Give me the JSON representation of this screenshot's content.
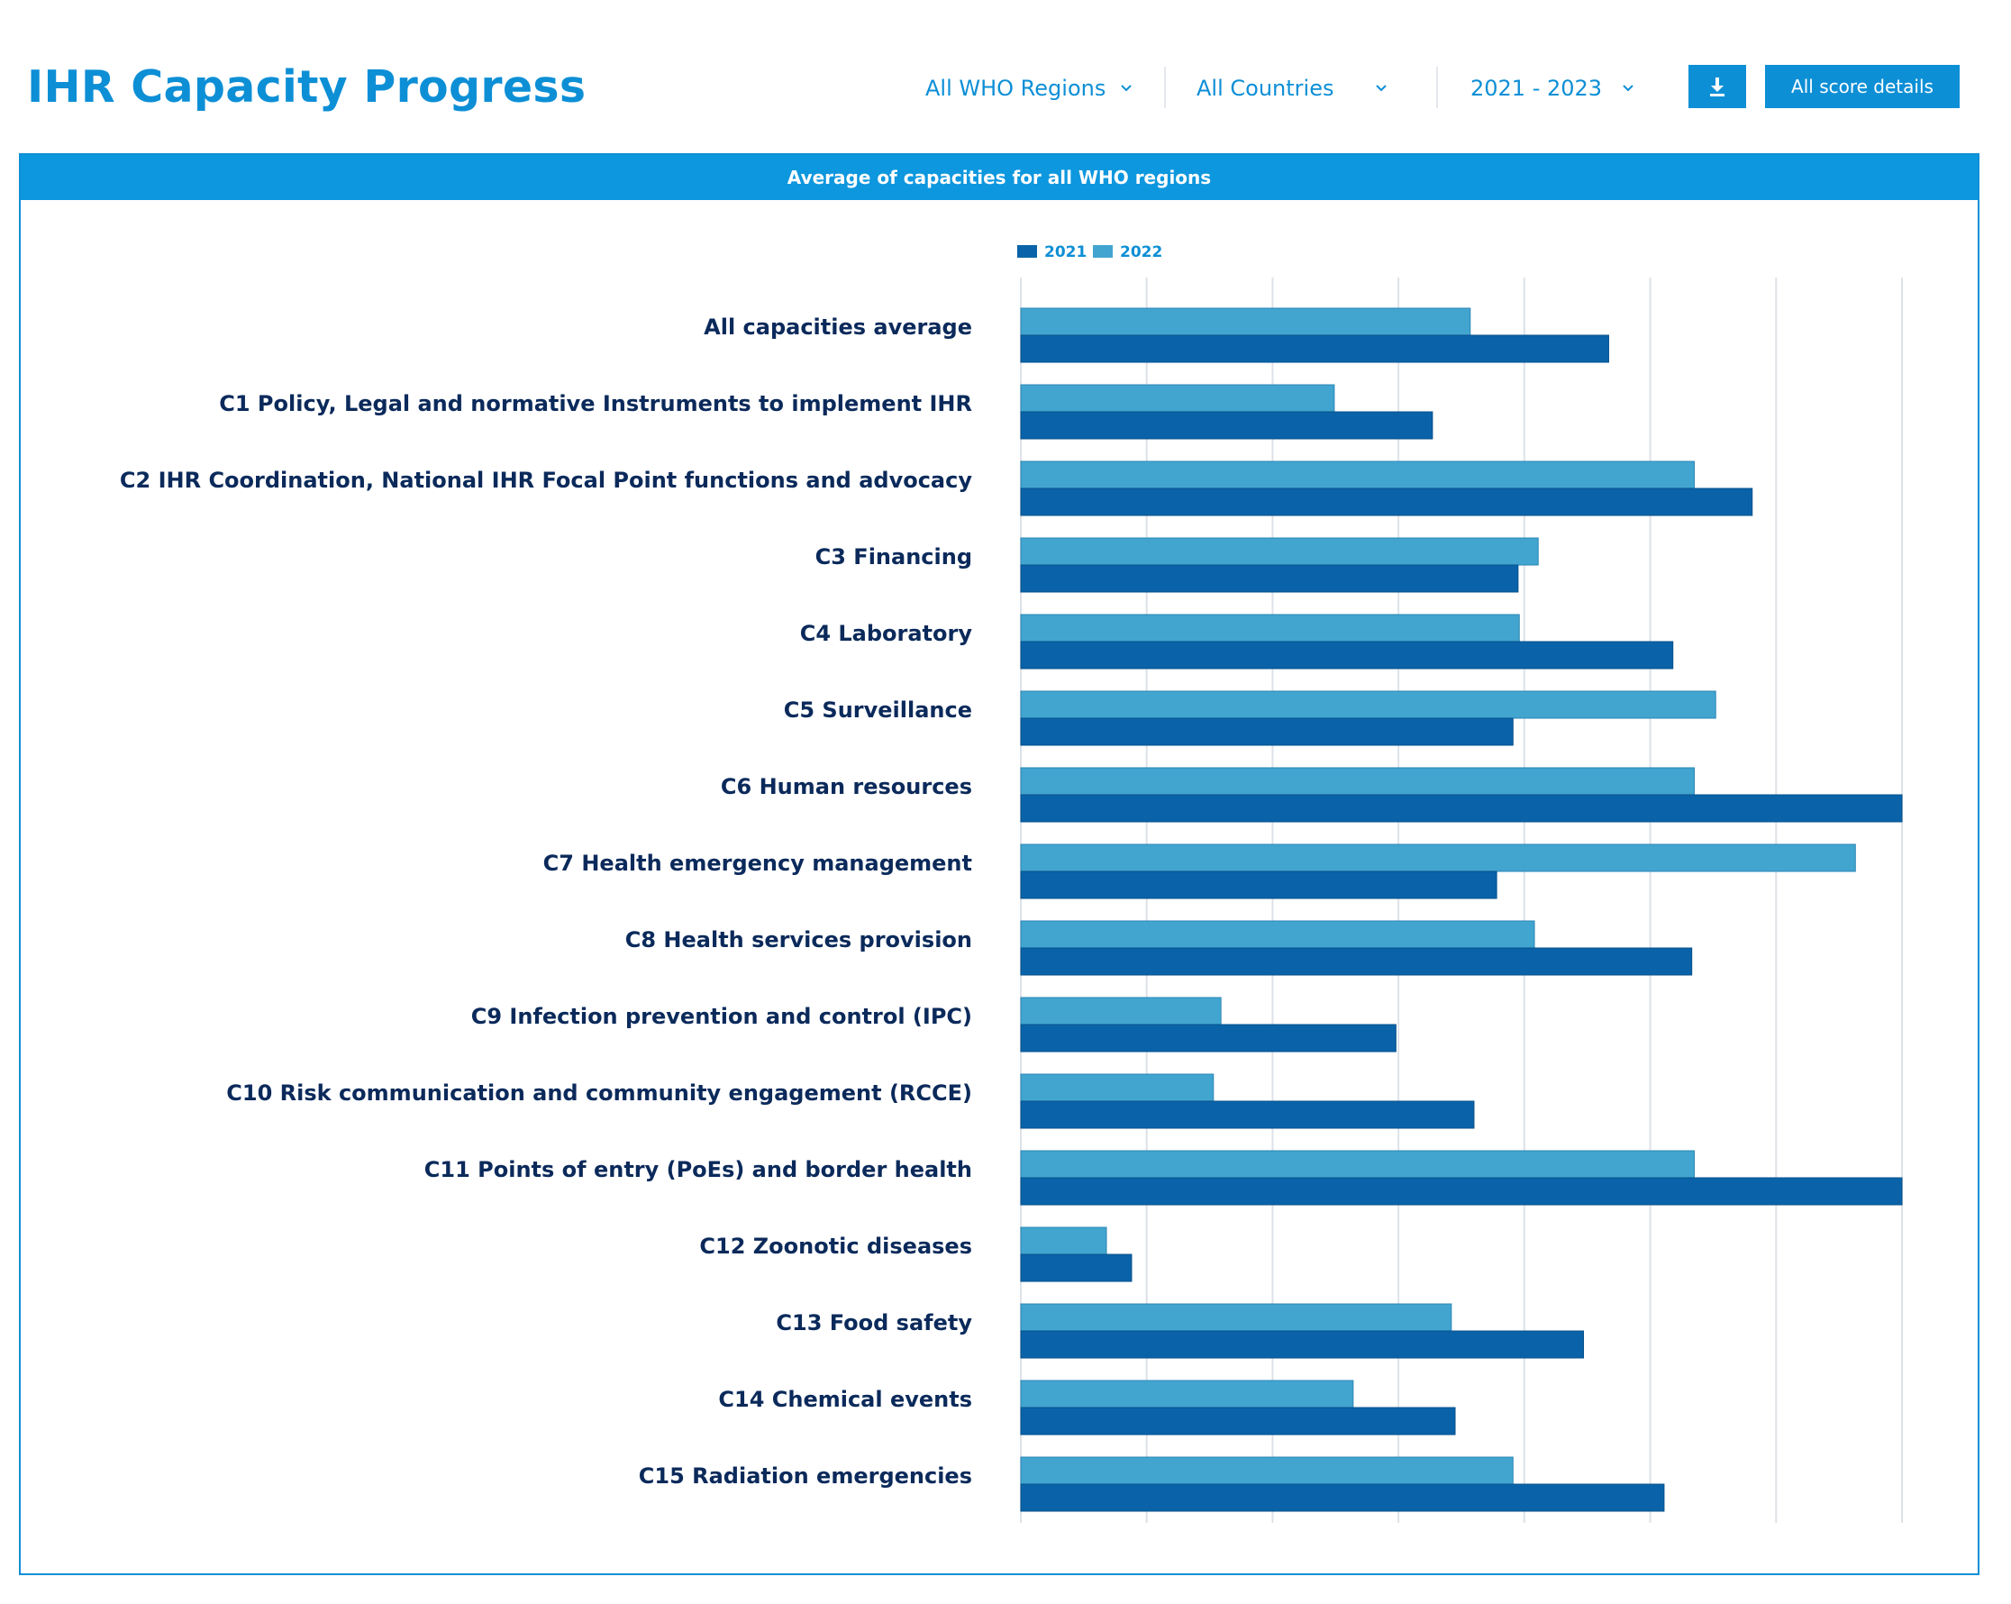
{
  "header": {
    "title": "IHR Capacity Progress",
    "filters": {
      "region": "All WHO Regions",
      "country": "All Countries",
      "years": "2021 - 2023"
    },
    "download_icon": "download-icon",
    "score_button_label": "All score details"
  },
  "panel": {
    "title": "Average of capacities for all WHO regions"
  },
  "colors": {
    "brand": "#0d8fd6",
    "series_2021": "#0a63a8",
    "series_2022": "#42a5cf",
    "grid": "#dde2e8"
  },
  "chart_data": {
    "type": "bar",
    "orientation": "horizontal",
    "title": "Average of capacities for all WHO regions",
    "legend_position": "top-center",
    "xlim": [
      0,
      7
    ],
    "grid": true,
    "categories": [
      "All capacities average",
      "C1 Policy, Legal and normative Instruments to implement IHR",
      "C2 IHR Coordination, National IHR Focal Point functions and advocacy",
      "C3 Financing",
      "C4 Laboratory",
      "C5 Surveillance",
      "C6 Human resources",
      "C7 Health emergency management",
      "C8 Health services provision",
      "C9 Infection prevention and control (IPC)",
      "C10 Risk communication and community engagement (RCCE)",
      "C11 Points of entry (PoEs) and border health",
      "C12 Zoonotic diseases",
      "C13 Food safety",
      "C14 Chemical events",
      "C15 Radiation emergencies"
    ],
    "series": [
      {
        "name": "2021",
        "values": [
          4.67,
          3.27,
          5.81,
          3.95,
          5.18,
          3.91,
          7.0,
          3.78,
          5.33,
          2.98,
          3.6,
          7.0,
          0.88,
          4.47,
          3.45,
          5.11
        ]
      },
      {
        "name": "2022",
        "values": [
          3.57,
          2.49,
          5.35,
          4.11,
          3.96,
          5.52,
          5.35,
          6.63,
          4.08,
          1.59,
          1.53,
          5.35,
          0.68,
          3.42,
          2.64,
          3.91
        ]
      }
    ]
  }
}
